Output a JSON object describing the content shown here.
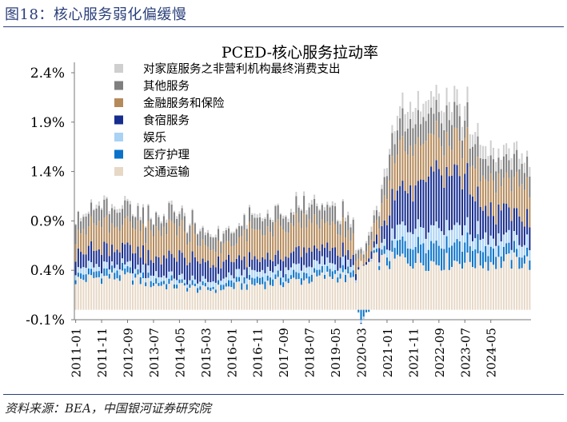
{
  "figure_title": "图18：核心服务弱化偏缓慢",
  "source": "资料来源：BEA，中国银河证券研究院",
  "colors": {
    "transport": "#e7d8c6",
    "medical": "#0a73c9",
    "recreation": "#a9d2f5",
    "food": "#162d8f",
    "finance": "#b58a5a",
    "other": "#7f7f7f",
    "nonprofit": "#cfcfcf",
    "title_blue": "#2a3f7a"
  },
  "chart_data": {
    "type": "bar",
    "stacked": true,
    "title": "PCED-核心服务拉动率",
    "ylim": [
      -0.1,
      2.6
    ],
    "yticks": [
      -0.1,
      0.4,
      0.9,
      1.4,
      1.9,
      2.4
    ],
    "ytick_labels": [
      "-0.1%",
      "0.4%",
      "0.9%",
      "1.4%",
      "1.9%",
      "2.4%"
    ],
    "x_start": "2011-01",
    "x_tick_labels": [
      "2011-01",
      "2011-11",
      "2012-09",
      "2013-07",
      "2014-05",
      "2015-03",
      "2016-01",
      "2016-11",
      "2017-09",
      "2018-07",
      "2019-05",
      "2020-03",
      "2021-01",
      "2021-11",
      "2022-09",
      "2023-07",
      "2024-05"
    ],
    "legend_position": "top-left",
    "series_keys": [
      "transport",
      "medical",
      "recreation",
      "food",
      "finance",
      "other",
      "nonprofit"
    ],
    "legend": [
      {
        "key": "nonprofit",
        "name": "对家庭服务之非营利机构最终消费支出"
      },
      {
        "key": "other",
        "name": "其他服务"
      },
      {
        "key": "finance",
        "name": "金融服务和保险"
      },
      {
        "key": "food",
        "name": "食宿服务"
      },
      {
        "key": "recreation",
        "name": "娱乐"
      },
      {
        "key": "medical",
        "name": "医疗护理"
      },
      {
        "key": "transport",
        "name": "交通运输"
      }
    ],
    "anchors": {
      "months": [
        0,
        10,
        20,
        30,
        40,
        50,
        60,
        70,
        80,
        90,
        100,
        107,
        110,
        116,
        121,
        125,
        130,
        140,
        150,
        155,
        160,
        170,
        175
      ],
      "transport": [
        0.3,
        0.33,
        0.33,
        0.26,
        0.24,
        0.2,
        0.23,
        0.26,
        0.28,
        0.31,
        0.35,
        0.3,
        0.42,
        0.5,
        0.48,
        0.52,
        0.5,
        0.48,
        0.5,
        0.48,
        0.48,
        0.49,
        0.48
      ],
      "medical": [
        0.06,
        0.06,
        0.06,
        0.05,
        0.04,
        0.03,
        0.05,
        0.06,
        0.06,
        0.06,
        0.06,
        0.05,
        -0.08,
        0.05,
        0.08,
        0.16,
        0.2,
        0.22,
        0.2,
        0.16,
        0.14,
        0.1,
        0.08
      ],
      "recreation": [
        0.06,
        0.06,
        0.06,
        0.06,
        0.05,
        0.05,
        0.06,
        0.07,
        0.07,
        0.08,
        0.08,
        0.05,
        -0.03,
        0.04,
        0.1,
        0.14,
        0.15,
        0.16,
        0.14,
        0.12,
        0.12,
        0.12,
        0.11
      ],
      "food": [
        0.16,
        0.18,
        0.17,
        0.15,
        0.22,
        0.2,
        0.14,
        0.12,
        0.14,
        0.16,
        0.15,
        0.1,
        -0.02,
        0.1,
        0.3,
        0.45,
        0.4,
        0.6,
        0.5,
        0.35,
        0.28,
        0.25,
        0.22
      ],
      "finance": [
        0.22,
        0.24,
        0.22,
        0.25,
        0.3,
        0.15,
        0.18,
        0.28,
        0.28,
        0.3,
        0.22,
        0.2,
        0.06,
        0.18,
        0.35,
        0.4,
        0.45,
        0.35,
        0.3,
        0.32,
        0.3,
        0.32,
        0.35
      ],
      "other": [
        0.16,
        0.16,
        0.15,
        0.13,
        0.14,
        0.12,
        0.12,
        0.14,
        0.14,
        0.15,
        0.16,
        0.12,
        0.05,
        0.12,
        0.22,
        0.25,
        0.25,
        0.25,
        0.22,
        0.2,
        0.2,
        0.2,
        0.2
      ],
      "nonprofit": [
        0.02,
        0.03,
        0.03,
        0.02,
        0.03,
        0.02,
        0.02,
        0.03,
        0.03,
        0.03,
        0.03,
        0.03,
        0.03,
        0.04,
        0.08,
        0.14,
        0.17,
        0.16,
        0.14,
        0.12,
        0.12,
        0.1,
        0.08
      ]
    }
  }
}
